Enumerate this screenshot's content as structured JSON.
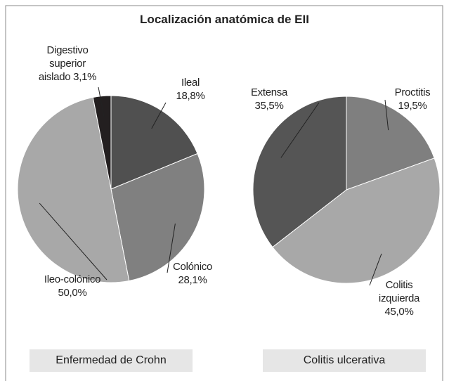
{
  "title": "Localización anatómica de EII",
  "chart_data": [
    {
      "type": "pie",
      "title": "Enfermedad de Crohn",
      "categories": [
        "Ileal",
        "Colónico",
        "Ileo-colónico",
        "Digestivo superior aislado"
      ],
      "values": [
        18.8,
        28.1,
        50.0,
        3.1
      ],
      "value_labels": [
        "18,8%",
        "28,1%",
        "50,0%",
        "3,1%"
      ],
      "colors": [
        "#505050",
        "#808080",
        "#a8a8a8",
        "#231f20"
      ]
    },
    {
      "type": "pie",
      "title": "Colitis ulcerativa",
      "categories": [
        "Proctitis",
        "Colitis izquierda",
        "Extensa"
      ],
      "values": [
        19.5,
        45.0,
        35.5
      ],
      "value_labels": [
        "19,5%",
        "45,0%",
        "35,5%"
      ],
      "colors": [
        "#7f7f7f",
        "#a8a8a8",
        "#555555"
      ]
    }
  ]
}
